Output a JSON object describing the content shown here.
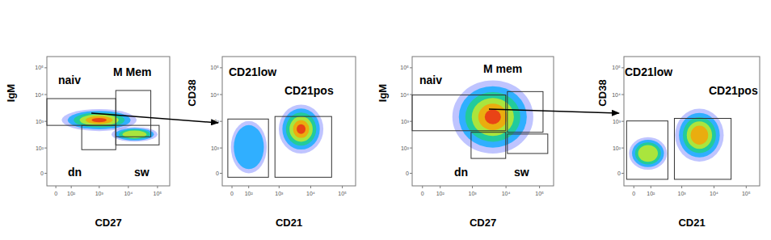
{
  "chart_data": [
    {
      "type": "scatter",
      "x_label": "CD27",
      "y_label": "IgM",
      "log": true,
      "xlim": [
        -50,
        262144
      ],
      "ylim": [
        -30,
        262144
      ],
      "xticks": [
        0,
        {
          "value": 100,
          "label": "10²"
        },
        {
          "value": 1000,
          "label": "10³"
        },
        {
          "value": 10000,
          "label": "10⁴"
        },
        {
          "value": 100000,
          "label": "10⁵"
        }
      ],
      "yticks": [
        0,
        {
          "value": 100,
          "label": "10²"
        },
        {
          "value": 1000,
          "label": "10³"
        },
        {
          "value": 10000,
          "label": "10⁴"
        },
        {
          "value": 100000,
          "label": "10⁵"
        }
      ],
      "gates": [
        {
          "label": "naiv",
          "x": [
            -50,
            3700
          ],
          "y": [
            708,
            7060
          ]
        },
        {
          "label": "M Mem",
          "x": [
            3700,
            58800
          ],
          "y": [
            265,
            14200
          ]
        },
        {
          "label": "dn",
          "x": [
            247,
            3700
          ],
          "y": [
            86,
            708
          ]
        },
        {
          "label": "sw",
          "x": [
            3700,
            113800
          ],
          "y": [
            131,
            708
          ]
        }
      ],
      "populations": [
        {
          "x": [
            31,
            19200
          ],
          "y": [
            435,
            2850
          ],
          "density": 1
        },
        {
          "x": [
            2650,
            100000
          ],
          "y": [
            174,
            614
          ],
          "density": 0.5
        }
      ]
    },
    {
      "type": "scatter",
      "x_label": "CD21",
      "y_label": "CD38",
      "log": true,
      "xlim": [
        -50,
        262144
      ],
      "ylim": [
        -30,
        262144
      ],
      "xticks": [
        0,
        {
          "value": 100,
          "label": "10²"
        },
        {
          "value": 1000,
          "label": "10³"
        },
        {
          "value": 10000,
          "label": "10⁴"
        },
        {
          "value": 100000,
          "label": "10⁵"
        }
      ],
      "yticks": [
        0,
        {
          "value": 100,
          "label": "10²"
        },
        {
          "value": 1000,
          "label": "10³"
        },
        {
          "value": 10000,
          "label": "10⁴"
        },
        {
          "value": 100000,
          "label": "10⁵"
        }
      ],
      "gates": [
        {
          "label": "CD21low",
          "x": [
            -20,
            460
          ],
          "y": [
            -8,
            1220
          ]
        },
        {
          "label": "CD21pos",
          "x": [
            740,
            45800
          ],
          "y": [
            -8,
            1520
          ]
        }
      ],
      "populations": [
        {
          "x": [
            980,
            25100
          ],
          "y": [
            61,
            4190
          ],
          "density": 1
        },
        {
          "x": [
            -5,
            405
          ],
          "y": [
            0,
            1035
          ],
          "density": 0.1
        }
      ]
    },
    {
      "type": "scatter",
      "x_label": "CD27",
      "y_label": "IgM",
      "log": true,
      "xlim": [
        -50,
        262144
      ],
      "ylim": [
        -30,
        262144
      ],
      "xticks": [
        0,
        {
          "value": 100,
          "label": "10²"
        },
        {
          "value": 1000,
          "label": "10³"
        },
        {
          "value": 10000,
          "label": "10⁴"
        },
        {
          "value": 100000,
          "label": "10⁵"
        }
      ],
      "yticks": [
        0,
        {
          "value": 100,
          "label": "10²"
        },
        {
          "value": 1000,
          "label": "10³"
        },
        {
          "value": 10000,
          "label": "10⁴"
        },
        {
          "value": 100000,
          "label": "10⁵"
        }
      ],
      "gates": [
        {
          "label": "naiv",
          "x": [
            -50,
            9800
          ],
          "y": [
            446,
            9650
          ]
        },
        {
          "label": "M mem",
          "x": [
            11000,
            127000
          ],
          "y": [
            390,
            12900
          ]
        },
        {
          "label": "dn",
          "x": [
            910,
            9800
          ],
          "y": [
            38,
            390
          ]
        },
        {
          "label": "sw",
          "x": [
            11000,
            176000
          ],
          "y": [
            61,
            335
          ]
        }
      ],
      "populations": [
        {
          "x": [
            248,
            65000
          ],
          "y": [
            61,
            34000
          ],
          "density": 1
        }
      ]
    },
    {
      "type": "scatter",
      "x_label": "CD21",
      "y_label": "CD38",
      "log": true,
      "xlim": [
        -50,
        262144
      ],
      "ylim": [
        -30,
        262144
      ],
      "xticks": [
        0,
        {
          "value": 100,
          "label": "10²"
        },
        {
          "value": 1000,
          "label": "10³"
        },
        {
          "value": 10000,
          "label": "10⁴"
        },
        {
          "value": 100000,
          "label": "10⁵"
        }
      ],
      "yticks": [
        0,
        {
          "value": 100,
          "label": "10²"
        },
        {
          "value": 1000,
          "label": "10³"
        },
        {
          "value": 10000,
          "label": "10⁴"
        },
        {
          "value": 100000,
          "label": "10⁵"
        }
      ],
      "gates": [
        {
          "label": "CD21low",
          "x": [
            -35,
            368
          ],
          "y": [
            -12.5,
            1035
          ]
        },
        {
          "label": "CD21pos",
          "x": [
            588,
            34000
          ],
          "y": [
            -12.5,
            1290
          ]
        }
      ],
      "populations": [
        {
          "x": [
            -23,
            345
          ],
          "y": [
            7.3,
            255
          ],
          "density": 0.6
        },
        {
          "x": [
            620,
            20000
          ],
          "y": [
            27,
            2970
          ],
          "density": 0.7
        }
      ]
    }
  ]
}
